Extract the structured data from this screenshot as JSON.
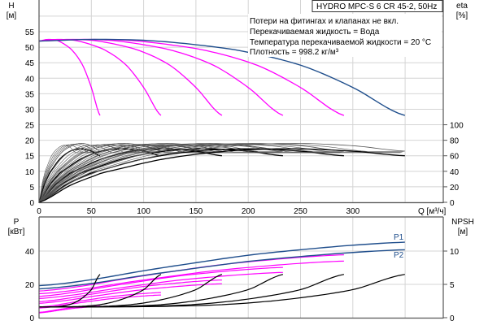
{
  "chart_data": [
    {
      "type": "line",
      "title": "HYDRO MPC-S 6 CR 45-2, 50Hz",
      "notes": [
        "Потери на фитингах и клапанах не вкл.",
        "Перекачиваемая жидкость = Вода",
        "Температура перекачиваемой жидкости = 20 °C",
        "Плотность = 998.2 кг/м³"
      ],
      "xlabel": "Q [м³/ч]",
      "ylabel": "H",
      "yunit": "[м]",
      "y2label": "eta",
      "y2unit": "[%]",
      "xlim": [
        0,
        385
      ],
      "ylim": [
        0,
        60
      ],
      "y2lim": [
        0,
        100
      ],
      "xticks": [
        "0",
        "50",
        "100",
        "150",
        "200",
        "250",
        "300"
      ],
      "yticks": [
        "0",
        "5",
        "10",
        "15",
        "20",
        "25",
        "30",
        "35",
        "40",
        "45",
        "50",
        "55"
      ],
      "y2ticks": [
        "0",
        "20",
        "40",
        "60",
        "80",
        "100"
      ],
      "grid": true,
      "pump_counts": [
        1,
        2,
        3,
        4,
        5,
        6
      ],
      "single_pump_head": {
        "q": [
          0,
          8,
          17,
          25,
          33,
          42,
          50,
          58.3
        ],
        "h": [
          52,
          52.5,
          52.2,
          50.8,
          48.5,
          44,
          37,
          28
        ]
      },
      "single_pump_eta_total": {
        "q": [
          0,
          5,
          10,
          20,
          30,
          40,
          50,
          58.3
        ],
        "eta": [
          0,
          25,
          42,
          62,
          72,
          76,
          73,
          66
        ]
      },
      "single_pump_eta_hydraulic": {
        "q": [
          0,
          5,
          10,
          20,
          30,
          40,
          50,
          58.3
        ],
        "eta": [
          0,
          22,
          38,
          56,
          66,
          69,
          66,
          60
        ]
      },
      "reduced_speed_factors": [
        0.6,
        0.7,
        0.8,
        0.9
      ],
      "colors": {
        "max_curve": "#1f4e8c",
        "pump_curves": "#ff00ff",
        "eta": "#000000",
        "eta_thin": "#555555"
      }
    },
    {
      "type": "line",
      "xlabel": "Q [м³/ч]",
      "ylabel": "P",
      "yunit": "[кВт]",
      "y2label": "NPSH",
      "y2unit": "[м]",
      "xlim": [
        0,
        385
      ],
      "ylim": [
        0,
        60
      ],
      "y2lim": [
        0,
        15
      ],
      "yticks": [
        "0",
        "20",
        "40"
      ],
      "y2ticks": [
        "0",
        "5",
        "10"
      ],
      "series_labels": [
        "P1",
        "P2"
      ],
      "single_pump_p1": {
        "q": [
          0,
          8.3,
          16.7,
          25,
          33.3,
          41.7,
          50,
          58.3
        ],
        "p": [
          3.2,
          3.8,
          4.7,
          5.5,
          6.25,
          6.8,
          7.25,
          7.55
        ]
      },
      "p2_ratio": 0.9,
      "single_pump_npsh": {
        "q": [
          0,
          10,
          20,
          30,
          40,
          50,
          58.3
        ],
        "npsh": [
          1.6,
          1.62,
          1.7,
          2.0,
          2.8,
          4.2,
          6.5
        ]
      },
      "colors": {
        "p_max": "#1f4e8c",
        "p_lines": "#ff00ff",
        "npsh": "#000000"
      }
    }
  ]
}
